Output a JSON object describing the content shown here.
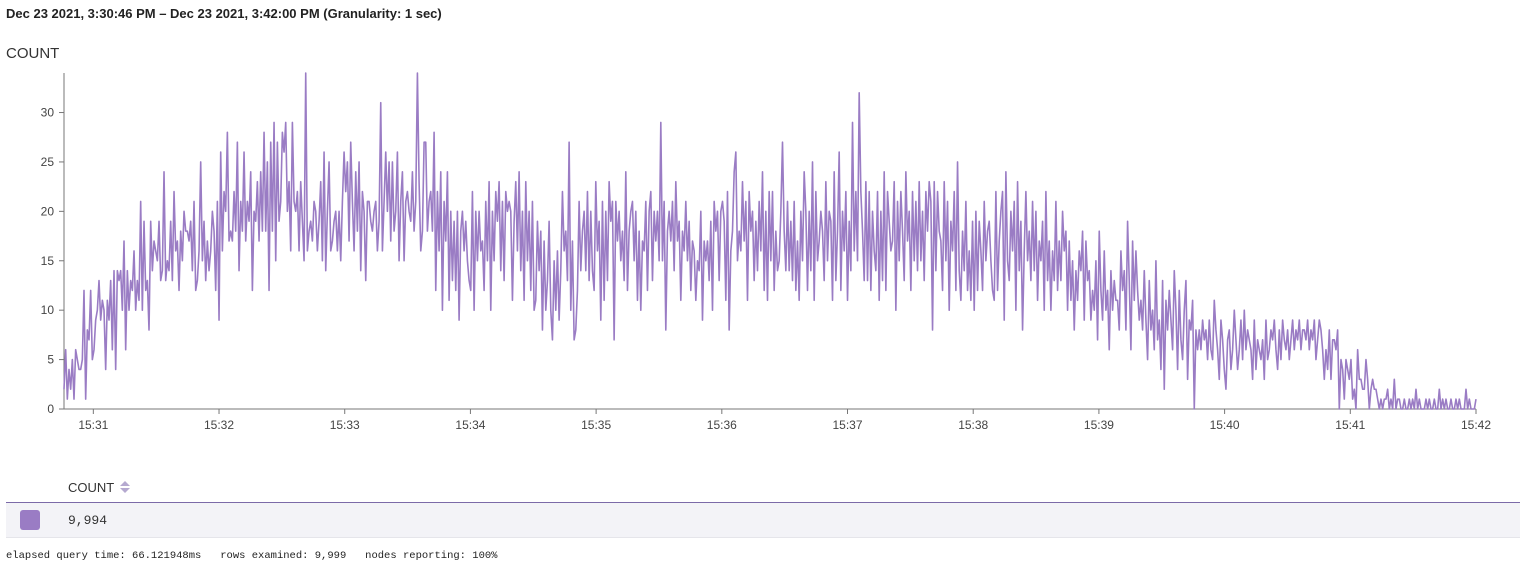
{
  "header": {
    "time_range": "Dec 23 2021, 3:30:46 PM – Dec 23 2021, 3:42:00 PM (Granularity: 1 sec)"
  },
  "chart_data": {
    "type": "line",
    "title": "COUNT",
    "xlabel": "",
    "ylabel": "",
    "x_start": "15:30:46",
    "x_end": "15:42:00",
    "xlim": [
      "15:30:46",
      "15:42:00"
    ],
    "ylim": [
      0,
      34
    ],
    "x_ticks": [
      "15:31",
      "15:32",
      "15:33",
      "15:34",
      "15:35",
      "15:36",
      "15:37",
      "15:38",
      "15:39",
      "15:40",
      "15:41",
      "15:42"
    ],
    "y_ticks": [
      0,
      5,
      10,
      15,
      20,
      25,
      30
    ],
    "grid": false,
    "legend": "none",
    "color": "#9a7cc4",
    "series": [
      {
        "values": [
          2,
          6,
          1,
          4,
          2,
          5,
          1,
          6,
          5,
          4,
          4,
          5,
          12,
          1,
          8,
          7,
          12,
          5,
          6,
          9,
          10,
          13,
          9,
          11,
          10,
          4,
          11,
          9,
          13,
          6,
          14,
          4,
          14,
          13,
          14,
          10,
          17,
          6,
          14,
          10,
          13,
          12,
          16,
          10,
          13,
          11,
          21,
          10,
          19,
          12,
          13,
          8,
          19,
          14,
          17,
          16,
          15,
          19,
          13,
          14,
          24,
          13,
          15,
          14,
          19,
          13,
          22,
          16,
          17,
          12,
          18,
          15,
          20,
          18,
          18,
          17,
          19,
          14,
          21,
          12,
          13,
          16,
          25,
          15,
          19,
          13,
          17,
          14,
          16,
          20,
          18,
          12,
          21,
          9,
          26,
          16,
          22,
          20,
          28,
          17,
          18,
          17,
          22,
          18,
          27,
          14,
          21,
          18,
          26,
          17,
          21,
          19,
          24,
          12,
          20,
          19,
          23,
          17,
          24,
          18,
          28,
          18,
          25,
          12,
          27,
          18,
          29,
          15,
          27,
          19,
          21,
          28,
          26,
          29,
          20,
          23,
          16,
          29,
          21,
          20,
          22,
          16,
          23,
          19,
          15,
          34,
          16,
          18,
          19,
          17,
          21,
          20,
          16,
          19,
          23,
          15,
          26,
          14,
          20,
          25,
          16,
          17,
          19,
          20,
          16,
          20,
          15,
          21,
          26,
          22,
          25,
          17,
          27,
          21,
          16,
          24,
          18,
          25,
          14,
          22,
          20,
          13,
          21,
          21,
          19,
          18,
          20,
          21,
          16,
          19,
          31,
          16,
          21,
          26,
          20,
          25,
          17,
          25,
          18,
          20,
          26,
          15,
          21,
          24,
          15,
          21,
          22,
          20,
          19,
          24,
          18,
          21,
          34,
          23,
          16,
          18,
          27,
          27,
          18,
          21,
          22,
          18,
          28,
          12,
          22,
          16,
          24,
          10,
          21,
          17,
          24,
          11,
          20,
          13,
          19,
          12,
          20,
          9,
          18,
          20,
          16,
          19,
          15,
          13,
          12,
          22,
          10,
          20,
          15,
          20,
          16,
          17,
          12,
          21,
          15,
          23,
          10,
          20,
          15,
          22,
          19,
          23,
          14,
          21,
          13,
          22,
          20,
          21,
          20,
          11,
          19,
          23,
          16,
          24,
          14,
          20,
          11,
          23,
          15,
          20,
          12,
          21,
          10,
          11,
          19,
          14,
          18,
          8,
          17,
          10,
          13,
          19,
          10,
          7,
          15,
          10,
          16,
          9,
          14,
          22,
          16,
          18,
          13,
          27,
          10,
          17,
          7,
          8,
          12,
          21,
          14,
          18,
          20,
          14,
          22,
          13,
          20,
          14,
          12,
          23,
          16,
          19,
          9,
          21,
          11,
          20,
          13,
          23,
          19,
          21,
          7,
          21,
          17,
          20,
          15,
          18,
          13,
          24,
          12,
          18,
          20,
          21,
          15,
          20,
          11,
          18,
          10,
          17,
          16,
          21,
          12,
          20,
          22,
          13,
          20,
          17,
          20,
          15,
          29,
          15,
          21,
          8,
          18,
          20,
          17,
          21,
          14,
          23,
          17,
          19,
          11,
          18,
          16,
          21,
          15,
          19,
          12,
          17,
          16,
          11,
          15,
          14,
          20,
          9,
          17,
          15,
          17,
          13,
          19,
          10,
          21,
          18,
          20,
          13,
          20,
          21,
          19,
          11,
          22,
          8,
          16,
          18,
          24,
          26,
          15,
          18,
          16,
          23,
          17,
          21,
          11,
          22,
          18,
          20,
          13,
          19,
          14,
          21,
          16,
          24,
          12,
          20,
          11,
          22,
          15,
          22,
          12,
          18,
          14,
          15,
          20,
          27,
          18,
          14,
          21,
          14,
          19,
          13,
          21,
          12,
          17,
          11,
          20,
          15,
          24,
          20,
          12,
          20,
          14,
          25,
          11,
          22,
          15,
          17,
          20,
          18,
          13,
          23,
          15,
          20,
          19,
          11,
          24,
          13,
          18,
          26,
          12,
          20,
          16,
          22,
          11,
          19,
          14,
          29,
          16,
          22,
          15,
          32,
          22,
          18,
          13,
          23,
          13,
          22,
          12,
          20,
          16,
          14,
          22,
          11,
          20,
          13,
          24,
          12,
          22,
          19,
          16,
          17,
          23,
          10,
          21,
          15,
          22,
          18,
          13,
          24,
          17,
          20,
          12,
          22,
          15,
          21,
          14,
          23,
          15,
          20,
          13,
          22,
          18,
          23,
          21,
          8,
          23,
          14,
          22,
          18,
          17,
          12,
          23,
          15,
          21,
          10,
          19,
          16,
          22,
          12,
          25,
          14,
          11,
          18,
          14,
          21,
          12,
          16,
          11,
          19,
          10,
          20,
          12,
          19,
          16,
          12,
          21,
          15,
          18,
          19,
          15,
          12,
          11,
          22,
          12,
          17,
          20,
          22,
          9,
          24,
          15,
          13,
          20,
          16,
          21,
          10,
          23,
          14,
          19,
          8,
          16,
          22,
          15,
          18,
          13,
          21,
          14,
          20,
          11,
          17,
          15,
          19,
          10,
          22,
          13,
          17,
          10,
          16,
          13,
          21,
          12,
          17,
          13,
          20,
          16,
          18,
          10,
          17,
          11,
          15,
          8,
          14,
          11,
          16,
          14,
          18,
          9,
          17,
          13,
          14,
          9,
          12,
          10,
          15,
          7,
          18,
          12,
          9,
          16,
          10,
          12,
          6,
          14,
          10,
          13,
          11,
          11,
          8,
          16,
          12,
          14,
          8,
          19,
          13,
          6,
          17,
          11,
          16,
          12,
          9,
          11,
          8,
          14,
          9,
          5,
          13,
          8,
          10,
          6,
          15,
          7,
          9,
          4,
          13,
          2,
          11,
          8,
          12,
          9,
          6,
          14,
          10,
          4,
          12,
          7,
          5,
          10,
          13,
          3,
          9,
          8,
          11,
          0,
          8,
          6,
          8,
          6,
          9,
          7,
          8,
          5,
          9,
          6,
          5,
          11,
          8,
          6,
          3,
          9,
          7,
          4,
          2,
          7,
          8,
          4,
          6,
          10,
          7,
          4,
          6,
          9,
          5,
          10,
          6,
          8,
          7,
          6,
          3,
          9,
          4,
          7,
          6,
          5,
          7,
          3,
          9,
          5,
          6,
          8,
          7,
          9,
          6,
          4,
          8,
          5,
          9,
          7,
          6,
          8,
          5,
          7,
          9,
          6,
          8,
          7,
          9,
          6,
          8,
          8,
          7,
          9,
          6,
          8,
          7,
          9,
          5,
          7,
          9,
          8,
          6,
          3,
          6,
          4,
          8,
          3,
          7,
          7,
          6,
          8,
          0,
          5,
          4,
          1,
          5,
          4,
          3,
          5,
          1,
          2,
          0,
          6,
          3,
          3,
          2,
          2,
          5,
          3,
          0,
          2,
          3,
          2,
          2,
          1,
          0,
          1,
          0,
          1,
          1,
          2,
          0,
          1,
          0,
          3,
          0,
          1,
          1,
          0,
          0,
          1,
          0,
          0,
          1,
          0,
          1,
          0,
          2,
          0,
          1,
          0,
          0,
          0,
          1,
          0,
          1,
          0,
          0,
          1,
          0,
          0,
          2,
          0,
          1,
          0,
          1,
          0,
          0,
          1,
          0,
          0,
          1,
          0,
          1,
          0,
          0,
          0,
          2,
          0,
          1,
          0,
          0,
          0,
          1
        ]
      }
    ]
  },
  "results": {
    "column_header": "COUNT",
    "row_value": "9,994",
    "swatch_color": "#9a7cc4"
  },
  "footer": {
    "stats": "elapsed query time: 66.121948ms   rows examined: 9,999   nodes reporting: 100%"
  }
}
